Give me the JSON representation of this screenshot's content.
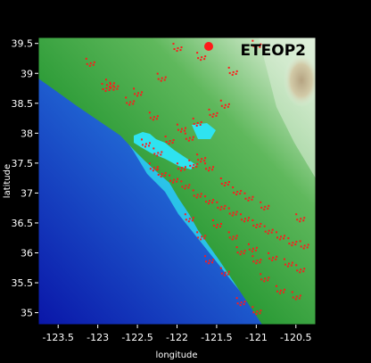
{
  "map": {
    "title": "ETEOP2",
    "xlabel": "longitude",
    "ylabel": "latitude",
    "xlim": [
      -123.75,
      -120.25
    ],
    "ylim": [
      34.8,
      39.6
    ],
    "x_ticks": [
      {
        "value": -123.5,
        "label": "-123.5"
      },
      {
        "value": -123,
        "label": "-123"
      },
      {
        "value": -122.5,
        "label": "-122.5"
      },
      {
        "value": -122,
        "label": "-122"
      },
      {
        "value": -121.5,
        "label": "-121.5"
      },
      {
        "value": -121,
        "label": "-121"
      },
      {
        "value": -120.5,
        "label": "-120.5"
      }
    ],
    "y_ticks": [
      {
        "value": 39.5,
        "label": "39.5"
      },
      {
        "value": 39,
        "label": "39"
      },
      {
        "value": 38.5,
        "label": "38.5"
      },
      {
        "value": 38,
        "label": "38"
      },
      {
        "value": 37.5,
        "label": "37.5"
      },
      {
        "value": 37,
        "label": "37"
      },
      {
        "value": 36.5,
        "label": "36.5"
      },
      {
        "value": 36,
        "label": "36"
      },
      {
        "value": 35.5,
        "label": "35.5"
      },
      {
        "value": 35,
        "label": "35"
      }
    ],
    "colors": {
      "deep_ocean": "#0a16a8",
      "mid_ocean": "#2b7fd8",
      "shallow_ocean": "#2fe3f0",
      "lowland": "#1f8f2a",
      "upland": "#6cc06a",
      "highland": "#d9ecd6",
      "peak": "#8a4a1c",
      "quake": "#ff1a1a",
      "background": "#000000"
    },
    "quake_cluster_lonlat": [
      [
        -122.3,
        37.45
      ],
      [
        -122.2,
        37.35
      ],
      [
        -122.05,
        37.25
      ],
      [
        -121.9,
        37.15
      ],
      [
        -121.75,
        37.0
      ],
      [
        -121.6,
        36.9
      ],
      [
        -121.45,
        36.8
      ],
      [
        -121.3,
        36.7
      ],
      [
        -121.15,
        36.6
      ],
      [
        -121.0,
        36.5
      ],
      [
        -120.85,
        36.4
      ],
      [
        -120.7,
        36.3
      ],
      [
        -120.55,
        36.2
      ],
      [
        -120.4,
        36.15
      ],
      [
        -121.95,
        37.45
      ],
      [
        -121.8,
        37.5
      ],
      [
        -121.7,
        37.6
      ],
      [
        -121.6,
        37.45
      ],
      [
        -121.4,
        37.2
      ],
      [
        -121.25,
        37.05
      ],
      [
        -121.1,
        36.95
      ],
      [
        -120.9,
        36.8
      ],
      [
        -121.5,
        36.5
      ],
      [
        -121.3,
        36.3
      ],
      [
        -121.05,
        36.1
      ],
      [
        -120.8,
        35.95
      ],
      [
        -120.6,
        35.85
      ],
      [
        -120.45,
        35.75
      ],
      [
        -121.85,
        37.95
      ],
      [
        -122.1,
        37.9
      ],
      [
        -121.95,
        38.1
      ],
      [
        -121.75,
        38.2
      ],
      [
        -122.25,
        37.7
      ],
      [
        -122.4,
        37.85
      ],
      [
        -121.55,
        38.35
      ],
      [
        -121.4,
        38.5
      ],
      [
        -122.85,
        38.85
      ],
      [
        -122.8,
        38.8
      ],
      [
        -122.9,
        38.78
      ],
      [
        -122.3,
        38.3
      ],
      [
        -122.6,
        38.55
      ],
      [
        -122.5,
        38.7
      ],
      [
        -123.1,
        39.2
      ],
      [
        -122.2,
        38.95
      ],
      [
        -121.7,
        39.3
      ],
      [
        -121.0,
        39.5
      ],
      [
        -121.3,
        39.05
      ],
      [
        -122.0,
        39.45
      ],
      [
        -121.2,
        36.05
      ],
      [
        -121.0,
        35.9
      ],
      [
        -120.9,
        35.6
      ],
      [
        -120.7,
        35.4
      ],
      [
        -121.4,
        35.7
      ],
      [
        -121.6,
        35.9
      ],
      [
        -120.5,
        35.3
      ],
      [
        -120.45,
        36.6
      ],
      [
        -121.2,
        35.2
      ],
      [
        -121.0,
        35.05
      ],
      [
        -121.85,
        36.6
      ],
      [
        -121.7,
        36.3
      ]
    ]
  }
}
